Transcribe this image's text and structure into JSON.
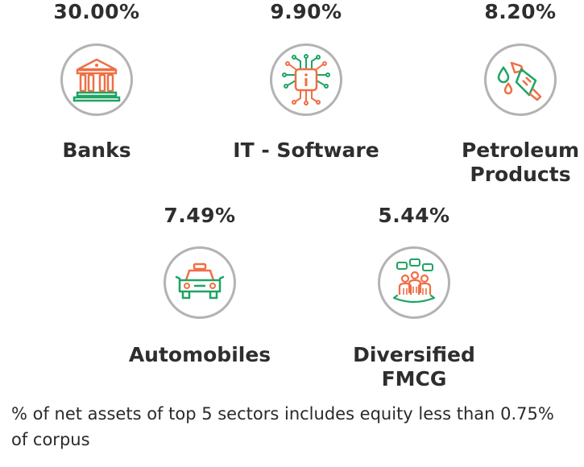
{
  "sectors": [
    {
      "value": "30.00%",
      "name": "Banks",
      "icon": "bank-icon"
    },
    {
      "value": "9.90%",
      "name": "IT - Software",
      "icon": "chip-icon"
    },
    {
      "value": "8.20%",
      "name": "Petroleum Products",
      "icon": "fuel-nozzle-icon"
    },
    {
      "value": "7.49%",
      "name": "Automobiles",
      "icon": "car-icon"
    },
    {
      "value": "5.44%",
      "name": "Diversified FMCG",
      "icon": "consumers-icon"
    }
  ],
  "footnote": "% of net assets of top 5 sectors includes equity less than 0.75% of corpus",
  "colors": {
    "orange": "#ef6f45",
    "green": "#1fa463",
    "ring": "#b3b3b3",
    "text": "#2e2e2e"
  }
}
